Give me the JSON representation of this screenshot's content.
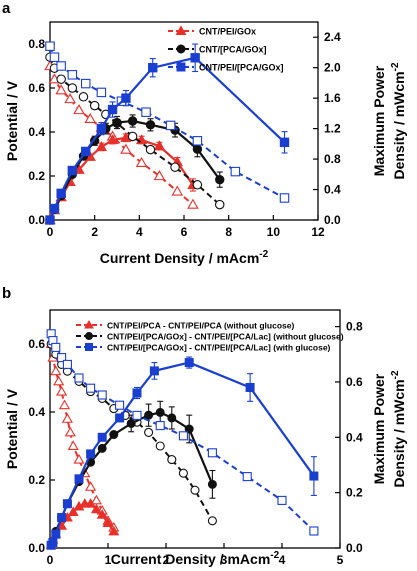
{
  "chart_data": [
    {
      "panel": "a",
      "type": "line",
      "xlabel": "Current Density / mAcm",
      "xlabel_sup": "-2",
      "ylabel": "Potential / V",
      "y2label_line1": "Maximum Power",
      "y2label_line2": "Density / mWcm",
      "y2label_sup": "-2",
      "xlim": [
        0,
        12
      ],
      "ylim": [
        0,
        0.9
      ],
      "y2lim": [
        0,
        2.6
      ],
      "xticks": [
        0,
        2,
        4,
        6,
        8,
        10,
        12
      ],
      "yticks": [
        0.0,
        0.2,
        0.4,
        0.6,
        0.8
      ],
      "y2ticks": [
        0.0,
        0.4,
        0.8,
        1.2,
        1.6,
        2.0,
        2.4
      ],
      "legend_position": "top-center",
      "series": [
        {
          "name": "CNT/PEI/GOx",
          "color": "#e8302a",
          "marker": "triangle",
          "polarization": {
            "x": [
              0.0,
              0.2,
              0.5,
              0.9,
              1.3,
              1.8,
              2.3,
              2.8,
              3.4,
              4.1,
              4.9,
              5.7,
              6.4
            ],
            "y": [
              0.7,
              0.64,
              0.59,
              0.55,
              0.5,
              0.46,
              0.42,
              0.38,
              0.32,
              0.26,
              0.2,
              0.13,
              0.07
            ]
          },
          "power": {
            "x": [
              0.0,
              0.2,
              0.5,
              0.9,
              1.3,
              1.8,
              2.3,
              2.8,
              3.4,
              4.1,
              4.9,
              5.7,
              6.4
            ],
            "y": [
              0.0,
              0.13,
              0.3,
              0.5,
              0.66,
              0.83,
              0.96,
              1.05,
              1.08,
              1.05,
              0.97,
              0.76,
              0.46
            ],
            "err": [
              0,
              0,
              0,
              0,
              0,
              0,
              0.05,
              0.05,
              0.05,
              0.05,
              0.05,
              0.06,
              0.08
            ]
          }
        },
        {
          "name": "CNT/[PCA/GOx]",
          "color": "#111111",
          "marker": "circle",
          "polarization": {
            "x": [
              0.0,
              0.2,
              0.5,
              1.0,
              1.5,
              2.0,
              2.5,
              3.0,
              3.7,
              4.5,
              5.6,
              6.6,
              7.6
            ],
            "y": [
              0.74,
              0.69,
              0.64,
              0.6,
              0.56,
              0.52,
              0.48,
              0.44,
              0.38,
              0.32,
              0.24,
              0.16,
              0.07
            ]
          },
          "power": {
            "x": [
              0.0,
              0.2,
              0.5,
              1.0,
              1.5,
              2.0,
              2.5,
              3.0,
              3.7,
              4.5,
              5.6,
              6.6,
              7.6
            ],
            "y": [
              0.0,
              0.14,
              0.32,
              0.6,
              0.84,
              1.04,
              1.2,
              1.28,
              1.3,
              1.25,
              1.18,
              0.93,
              0.53
            ],
            "err": [
              0,
              0,
              0,
              0,
              0,
              0.06,
              0.07,
              0.08,
              0.08,
              0.08,
              0.09,
              0.1,
              0.1
            ]
          }
        },
        {
          "name": "CNT/PEI/[PCA/GOx]",
          "color": "#1a3fd0",
          "marker": "square",
          "polarization": {
            "x": [
              0.0,
              0.2,
              0.5,
              1.0,
              1.6,
              2.3,
              3.2,
              4.3,
              5.4,
              6.6,
              8.3,
              10.5
            ],
            "y": [
              0.79,
              0.74,
              0.7,
              0.66,
              0.62,
              0.58,
              0.54,
              0.49,
              0.43,
              0.36,
              0.22,
              0.1
            ]
          },
          "power": {
            "x": [
              0.0,
              0.2,
              0.5,
              1.0,
              1.6,
              2.3,
              2.8,
              3.4,
              4.6,
              6.5,
              10.5
            ],
            "y": [
              0.0,
              0.15,
              0.35,
              0.65,
              0.9,
              1.2,
              1.45,
              1.6,
              2.0,
              2.13,
              1.02
            ],
            "err": [
              0,
              0,
              0,
              0,
              0.05,
              0.08,
              0.1,
              0.1,
              0.12,
              0.18,
              0.14
            ]
          }
        }
      ]
    },
    {
      "panel": "b",
      "type": "line",
      "xlabel": "Current Density / mAcm",
      "xlabel_sup": "-2",
      "ylabel": "Potential / V",
      "y2label_line1": "Maximum Power",
      "y2label_line2": "Density / mWcm",
      "y2label_sup": "-2",
      "xlim": [
        0,
        5
      ],
      "ylim": [
        0,
        0.7
      ],
      "y2lim": [
        0,
        0.86
      ],
      "xticks": [
        0,
        1,
        2,
        3,
        4,
        5
      ],
      "yticks": [
        0.0,
        0.2,
        0.4,
        0.6
      ],
      "y2ticks": [
        0.0,
        0.2,
        0.4,
        0.6,
        0.8
      ],
      "legend_position": "top-left",
      "series": [
        {
          "name": "CNT/PEI/PCA - CNT/PEI/PCA (without glucose)",
          "color": "#e8302a",
          "marker": "triangle",
          "polarization": {
            "x": [
              0.02,
              0.05,
              0.1,
              0.15,
              0.2,
              0.25,
              0.3,
              0.35,
              0.4,
              0.5,
              0.6,
              0.7,
              0.8,
              0.9,
              1.0,
              1.1
            ],
            "y": [
              0.6,
              0.56,
              0.52,
              0.49,
              0.46,
              0.42,
              0.38,
              0.34,
              0.3,
              0.26,
              0.22,
              0.18,
              0.14,
              0.11,
              0.08,
              0.06
            ]
          },
          "power": {
            "x": [
              0.02,
              0.05,
              0.1,
              0.2,
              0.3,
              0.4,
              0.5,
              0.6,
              0.7,
              0.8,
              0.9,
              1.0,
              1.1
            ],
            "y": [
              0.01,
              0.03,
              0.05,
              0.08,
              0.11,
              0.13,
              0.15,
              0.16,
              0.16,
              0.14,
              0.12,
              0.09,
              0.06
            ],
            "err": []
          }
        },
        {
          "name": "CNT/PEI/[PCA/GOx] - CNT/PEI/[PCA/Lac] (without glucose)",
          "color": "#111111",
          "marker": "circle",
          "polarization": {
            "x": [
              0.02,
              0.1,
              0.2,
              0.3,
              0.5,
              0.7,
              0.9,
              1.1,
              1.3,
              1.5,
              1.7,
              1.9,
              2.1,
              2.3,
              2.5,
              2.8
            ],
            "y": [
              0.6,
              0.57,
              0.54,
              0.52,
              0.49,
              0.46,
              0.44,
              0.41,
              0.39,
              0.37,
              0.34,
              0.3,
              0.26,
              0.22,
              0.17,
              0.08
            ]
          },
          "power": {
            "x": [
              0.02,
              0.1,
              0.2,
              0.3,
              0.5,
              0.7,
              0.9,
              1.1,
              1.4,
              1.7,
              1.9,
              2.1,
              2.4,
              2.8
            ],
            "y": [
              0.01,
              0.06,
              0.11,
              0.16,
              0.24,
              0.31,
              0.36,
              0.41,
              0.45,
              0.48,
              0.49,
              0.47,
              0.43,
              0.23
            ],
            "err": [
              0,
              0,
              0,
              0,
              0,
              0,
              0,
              0,
              0.03,
              0.04,
              0.04,
              0.04,
              0.05,
              0.05
            ]
          }
        },
        {
          "name": "CNT/PEI/[PCA/GOx] - CNT/PEI/[PCA/Lac] (with glucose)",
          "color": "#1a3fd0",
          "marker": "square",
          "polarization": {
            "x": [
              0.02,
              0.05,
              0.1,
              0.2,
              0.3,
              0.5,
              0.7,
              0.9,
              1.2,
              1.5,
              1.9,
              2.3,
              2.8,
              3.4,
              4.0,
              4.55
            ],
            "y": [
              0.63,
              0.61,
              0.59,
              0.56,
              0.54,
              0.5,
              0.47,
              0.45,
              0.42,
              0.39,
              0.36,
              0.33,
              0.28,
              0.21,
              0.14,
              0.05
            ]
          },
          "power": {
            "x": [
              0.02,
              0.05,
              0.1,
              0.2,
              0.3,
              0.5,
              0.7,
              0.9,
              1.2,
              1.5,
              1.8,
              2.4,
              3.45,
              4.55
            ],
            "y": [
              0.01,
              0.02,
              0.05,
              0.11,
              0.16,
              0.25,
              0.34,
              0.4,
              0.47,
              0.56,
              0.64,
              0.67,
              0.58,
              0.26
            ],
            "err": [
              0,
              0,
              0,
              0,
              0,
              0,
              0,
              0,
              0,
              0.02,
              0.03,
              0.02,
              0.05,
              0.07
            ]
          }
        }
      ]
    }
  ]
}
